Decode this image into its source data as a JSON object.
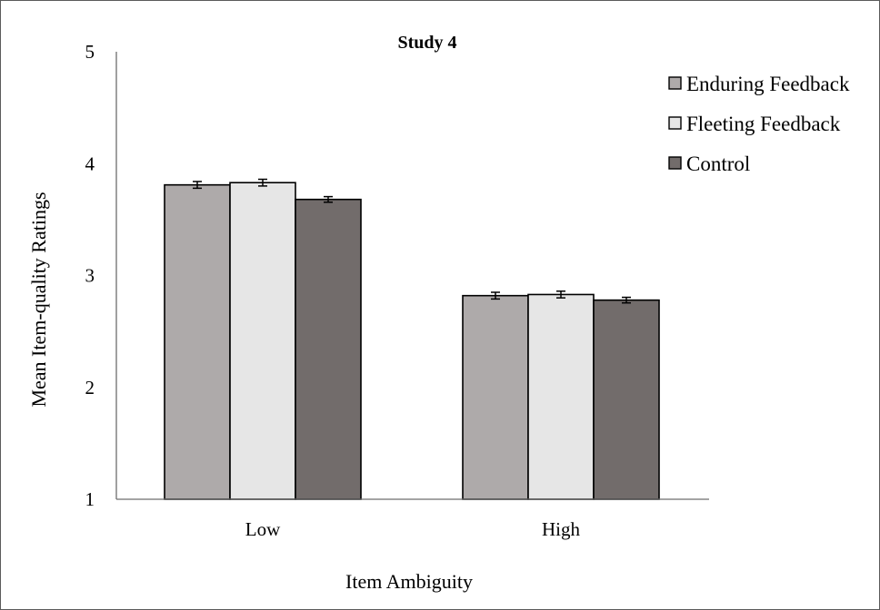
{
  "chart_data": {
    "type": "bar",
    "title": "Study 4",
    "xlabel": "Item Ambiguity",
    "ylabel": "Mean Item-quality Ratings",
    "categories": [
      "Low",
      "High"
    ],
    "ylim": [
      1,
      5
    ],
    "yticks": [
      "1",
      "2",
      "3",
      "4",
      "5"
    ],
    "grid": false,
    "legend_position": "top-right",
    "error_bars": true,
    "series": [
      {
        "name": "Enduring Feedback",
        "color": "#aeaaaa",
        "values": [
          3.81,
          2.82
        ],
        "errors": [
          0.03,
          0.03
        ]
      },
      {
        "name": "Fleeting Feedback",
        "color": "#e6e6e6",
        "values": [
          3.83,
          2.83
        ],
        "errors": [
          0.03,
          0.03
        ]
      },
      {
        "name": "Control",
        "color": "#726c6b",
        "values": [
          3.68,
          2.78
        ],
        "errors": [
          0.025,
          0.025
        ]
      }
    ]
  }
}
